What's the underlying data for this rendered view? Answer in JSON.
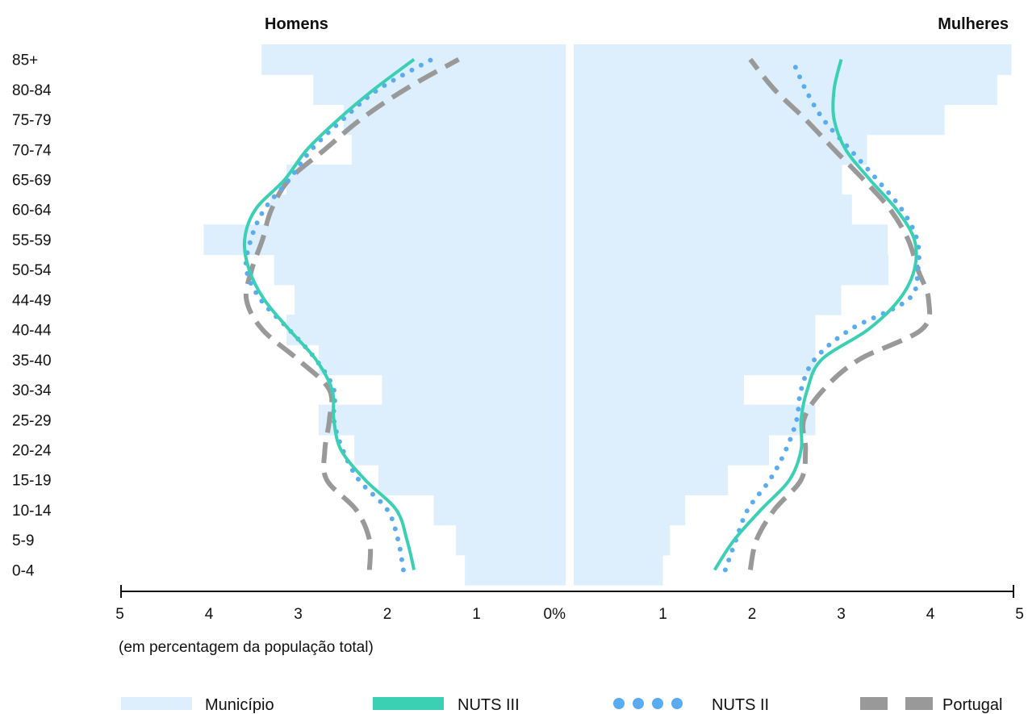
{
  "chart_data": {
    "type": "bar",
    "subtype": "population-pyramid",
    "title": "",
    "left_label": "Homens",
    "right_label": "Mulheres",
    "xlabel": "(em percentagem da população total)",
    "x_ticks_left": [
      "5",
      "4",
      "3",
      "2",
      "1",
      "0%"
    ],
    "x_ticks_right": [
      "1",
      "2",
      "3",
      "4",
      "5"
    ],
    "xlim": [
      0,
      5
    ],
    "grid": false,
    "legend_position": "bottom",
    "categories": [
      "0-4",
      "5-9",
      "10-14",
      "15-19",
      "20-24",
      "25-29",
      "30-34",
      "35-40",
      "40-44",
      "44-49",
      "50-54",
      "55-59",
      "60-64",
      "65-69",
      "70-74",
      "75-79",
      "80-84",
      "85+"
    ],
    "series": [
      {
        "name": "Município",
        "style": "bar",
        "color": "#ddeefc",
        "men": [
          1.13,
          1.23,
          1.48,
          2.1,
          2.37,
          2.77,
          2.06,
          2.77,
          3.13,
          3.04,
          3.27,
          4.06,
          3.31,
          3.13,
          2.4,
          2.49,
          2.83,
          3.41
        ],
        "women": [
          1.0,
          1.08,
          1.25,
          1.73,
          2.19,
          2.71,
          1.91,
          2.71,
          2.71,
          3.0,
          3.53,
          3.52,
          3.12,
          3.01,
          3.29,
          4.16,
          4.75,
          4.91
        ]
      },
      {
        "name": "NUTS III",
        "style": "line",
        "color": "#3bcfb4",
        "men": [
          1.7,
          1.78,
          1.9,
          2.25,
          2.52,
          2.6,
          2.62,
          2.8,
          3.1,
          3.38,
          3.55,
          3.6,
          3.48,
          3.15,
          2.9,
          2.55,
          2.15,
          1.7
        ],
        "women": [
          1.58,
          1.8,
          2.1,
          2.42,
          2.55,
          2.55,
          2.62,
          2.78,
          3.3,
          3.65,
          3.82,
          3.82,
          3.62,
          3.32,
          3.05,
          2.92,
          2.92,
          3.0
        ]
      },
      {
        "name": "NUTS II",
        "style": "dots",
        "color": "#5aacf0",
        "men": [
          1.82,
          1.88,
          2.0,
          2.32,
          2.5,
          2.6,
          2.6,
          2.8,
          3.1,
          3.42,
          3.58,
          3.53,
          3.38,
          3.1,
          2.85,
          2.5,
          2.1,
          1.5
        ],
        "women": [
          1.7,
          1.82,
          1.95,
          2.2,
          2.38,
          2.5,
          2.55,
          2.7,
          3.1,
          3.75,
          3.86,
          3.85,
          3.68,
          3.4,
          3.1,
          2.8,
          2.6,
          2.45
        ]
      },
      {
        "name": "Portugal",
        "style": "dashes",
        "color": "#999999",
        "men": [
          2.2,
          2.2,
          2.35,
          2.68,
          2.7,
          2.65,
          2.65,
          3.0,
          3.4,
          3.58,
          3.52,
          3.4,
          3.3,
          3.1,
          2.7,
          2.3,
          1.8,
          1.2
        ],
        "women": [
          1.98,
          2.05,
          2.25,
          2.55,
          2.6,
          2.58,
          2.8,
          3.2,
          3.9,
          3.98,
          3.86,
          3.75,
          3.55,
          3.25,
          2.92,
          2.6,
          2.25,
          1.98
        ]
      }
    ]
  }
}
